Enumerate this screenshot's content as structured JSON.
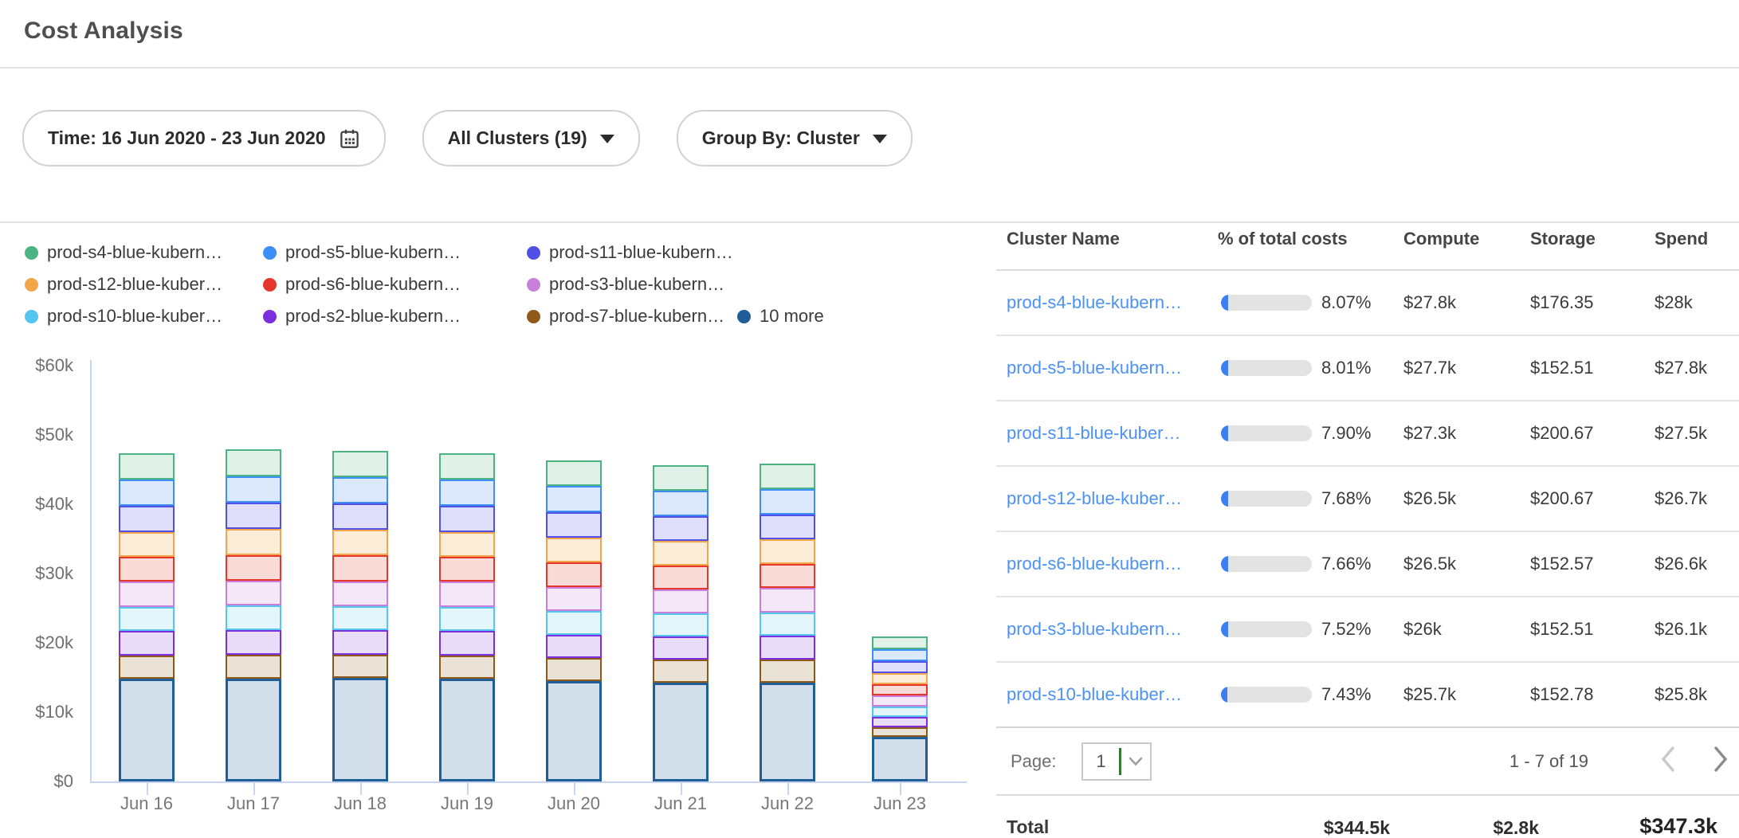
{
  "header": {
    "title": "Cost Analysis"
  },
  "filters": {
    "time_label": "Time: 16 Jun 2020 - 23 Jun 2020",
    "clusters_label": "All Clusters (19)",
    "group_by_label": "Group By: Cluster"
  },
  "colors": {
    "link_blue": "#4b92f7",
    "progress_fill": "#3d7ef0",
    "progress_track": "#e3e3e3",
    "axis_line": "#c7d4f2",
    "select_divider_green": "#2e7d32"
  },
  "chart_data": {
    "type": "bar",
    "stacked": true,
    "unit": "USD thousands",
    "x": [
      "Jun 16",
      "Jun 17",
      "Jun 18",
      "Jun 19",
      "Jun 20",
      "Jun 21",
      "Jun 22",
      "Jun 23"
    ],
    "yticks": [
      "$0",
      "$10k",
      "$20k",
      "$30k",
      "$40k",
      "$50k",
      "$60k"
    ],
    "ylim": [
      0,
      60000
    ],
    "grid": false,
    "legend_position": "top",
    "stack_order_note": "series listed top-of-stack first; rendered bottom-up in reverse order",
    "series": [
      {
        "name": "prod-s4-blue-kubern…",
        "color": "#4cb383",
        "fill": "#e0f1e8",
        "values": [
          3.8,
          3.9,
          3.8,
          3.8,
          3.7,
          3.7,
          3.7,
          1.8
        ]
      },
      {
        "name": "prod-s5-blue-kubern…",
        "color": "#3e8ef7",
        "fill": "#dce9fd",
        "values": [
          3.8,
          3.8,
          3.8,
          3.8,
          3.7,
          3.6,
          3.7,
          1.8
        ]
      },
      {
        "name": "prod-s11-blue-kubern…",
        "color": "#5050e6",
        "fill": "#dfdffb",
        "values": [
          3.8,
          3.8,
          3.8,
          3.8,
          3.7,
          3.6,
          3.6,
          1.7
        ]
      },
      {
        "name": "prod-s12-blue-kuber…",
        "color": "#f2a54a",
        "fill": "#fcedd8",
        "values": [
          3.6,
          3.7,
          3.7,
          3.6,
          3.6,
          3.5,
          3.5,
          1.6
        ]
      },
      {
        "name": "prod-s6-blue-kubern…",
        "color": "#e5362b",
        "fill": "#fadbd8",
        "values": [
          3.6,
          3.7,
          3.7,
          3.6,
          3.5,
          3.5,
          3.5,
          1.6
        ]
      },
      {
        "name": "prod-s3-blue-kubern…",
        "color": "#c77fd9",
        "fill": "#f4e7f8",
        "values": [
          3.6,
          3.6,
          3.6,
          3.6,
          3.5,
          3.4,
          3.5,
          1.6
        ]
      },
      {
        "name": "prod-s10-blue-kuber…",
        "color": "#54c6ef",
        "fill": "#e3f6fc",
        "values": [
          3.5,
          3.6,
          3.5,
          3.5,
          3.4,
          3.4,
          3.4,
          1.5
        ]
      },
      {
        "name": "prod-s2-blue-kubern…",
        "color": "#7b2fde",
        "fill": "#e9ddf9",
        "values": [
          3.5,
          3.5,
          3.5,
          3.5,
          3.4,
          3.3,
          3.4,
          1.5
        ]
      },
      {
        "name": "prod-s7-blue-kubern…",
        "color": "#8f5a19",
        "fill": "#eae2d4",
        "values": [
          3.4,
          3.5,
          3.4,
          3.4,
          3.3,
          3.3,
          3.3,
          1.4
        ]
      },
      {
        "name": "10 more",
        "color": "#205e97",
        "fill": "#d2dee9",
        "values": [
          14.8,
          14.8,
          14.9,
          14.8,
          14.5,
          14.3,
          14.3,
          6.4
        ]
      }
    ]
  },
  "table": {
    "columns": [
      "Cluster Name",
      "% of total costs",
      "Compute",
      "Storage",
      "Spend"
    ],
    "rows": [
      {
        "name": "prod-s4-blue-kubern…",
        "pct": "8.07%",
        "pct_value": 8.07,
        "compute": "$27.8k",
        "storage": "$176.35",
        "spend": "$28k"
      },
      {
        "name": "prod-s5-blue-kubern…",
        "pct": "8.01%",
        "pct_value": 8.01,
        "compute": "$27.7k",
        "storage": "$152.51",
        "spend": "$27.8k"
      },
      {
        "name": "prod-s11-blue-kuber…",
        "pct": "7.90%",
        "pct_value": 7.9,
        "compute": "$27.3k",
        "storage": "$200.67",
        "spend": "$27.5k"
      },
      {
        "name": "prod-s12-blue-kuber…",
        "pct": "7.68%",
        "pct_value": 7.68,
        "compute": "$26.5k",
        "storage": "$200.67",
        "spend": "$26.7k"
      },
      {
        "name": "prod-s6-blue-kubern…",
        "pct": "7.66%",
        "pct_value": 7.66,
        "compute": "$26.5k",
        "storage": "$152.57",
        "spend": "$26.6k"
      },
      {
        "name": "prod-s3-blue-kubern…",
        "pct": "7.52%",
        "pct_value": 7.52,
        "compute": "$26k",
        "storage": "$152.51",
        "spend": "$26.1k"
      },
      {
        "name": "prod-s10-blue-kuber…",
        "pct": "7.43%",
        "pct_value": 7.43,
        "compute": "$25.7k",
        "storage": "$152.78",
        "spend": "$25.8k"
      }
    ],
    "pagination": {
      "page_label": "Page:",
      "page_value": "1",
      "range_label": "1 - 7 of 19"
    },
    "total": {
      "label": "Total",
      "compute": "$344.5k",
      "storage": "$2.8k",
      "spend": "$347.3k"
    }
  }
}
